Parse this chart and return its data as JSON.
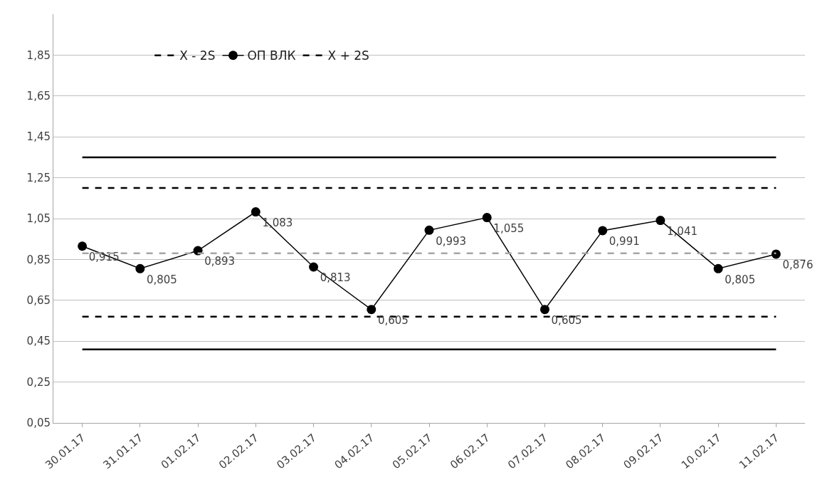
{
  "chart_data": {
    "type": "line",
    "categories": [
      "30.01.17",
      "31.01.17",
      "01.02.17",
      "02.02.17",
      "03.02.17",
      "04.02.17",
      "05.02.17",
      "06.02.17",
      "07.02.17",
      "08.02.17",
      "09.02.17",
      "10.02.17",
      "11.02.17"
    ],
    "series": [
      {
        "color": "#000000",
        "line_style": "solid",
        "marker": "none",
        "values": [
          1.35,
          1.35,
          1.35,
          1.35,
          1.35,
          1.35,
          1.35,
          1.35,
          1.35,
          1.35,
          1.35,
          1.35,
          1.35
        ]
      },
      {
        "name": "X - 2S",
        "color": "#000000",
        "line_style": "dashed",
        "marker": "none",
        "values": [
          0.57,
          0.57,
          0.57,
          0.57,
          0.57,
          0.57,
          0.57,
          0.57,
          0.57,
          0.57,
          0.57,
          0.57,
          0.57
        ]
      },
      {
        "name": "ОП ВЛК",
        "color": "#000000",
        "line_style": "solid",
        "marker": "circle",
        "values": [
          0.915,
          0.805,
          0.893,
          1.083,
          0.813,
          0.605,
          0.993,
          1.055,
          0.605,
          0.991,
          1.041,
          0.805,
          0.876
        ],
        "value_labels": [
          "0,915",
          "0,805",
          "0,893",
          "1,083",
          "0,813",
          "0,605",
          "0,993",
          "1,055",
          "0,605",
          "0,991",
          "1,041",
          "0,805",
          "0,876"
        ]
      },
      {
        "name": "X + 2S",
        "color": "#000000",
        "line_style": "dashed",
        "marker": "none",
        "values": [
          1.2,
          1.2,
          1.2,
          1.2,
          1.2,
          1.2,
          1.2,
          1.2,
          1.2,
          1.2,
          1.2,
          1.2,
          1.2
        ]
      },
      {
        "color": "#a6a6a6",
        "line_style": "dashed",
        "marker": "none",
        "values": [
          0.88,
          0.88,
          0.88,
          0.88,
          0.88,
          0.88,
          0.88,
          0.88,
          0.88,
          0.88,
          0.88,
          0.88,
          0.88
        ]
      },
      {
        "color": "#000000",
        "line_style": "solid",
        "marker": "none",
        "values": [
          0.41,
          0.41,
          0.41,
          0.41,
          0.41,
          0.41,
          0.41,
          0.41,
          0.41,
          0.41,
          0.41,
          0.41,
          0.41
        ]
      }
    ],
    "ylim": [
      0.05,
      2.05
    ],
    "yticks": [
      {
        "value": 0.05,
        "label": "0,05"
      },
      {
        "value": 0.25,
        "label": "0,25"
      },
      {
        "value": 0.45,
        "label": "0,45"
      },
      {
        "value": 0.65,
        "label": "0,65"
      },
      {
        "value": 0.85,
        "label": "0,85"
      },
      {
        "value": 1.05,
        "label": "1,05"
      },
      {
        "value": 1.25,
        "label": "1,25"
      },
      {
        "value": 1.45,
        "label": "1,45"
      },
      {
        "value": 1.65,
        "label": "1,65"
      },
      {
        "value": 1.85,
        "label": "1,85"
      }
    ],
    "grid": "y",
    "legend": "top left"
  }
}
